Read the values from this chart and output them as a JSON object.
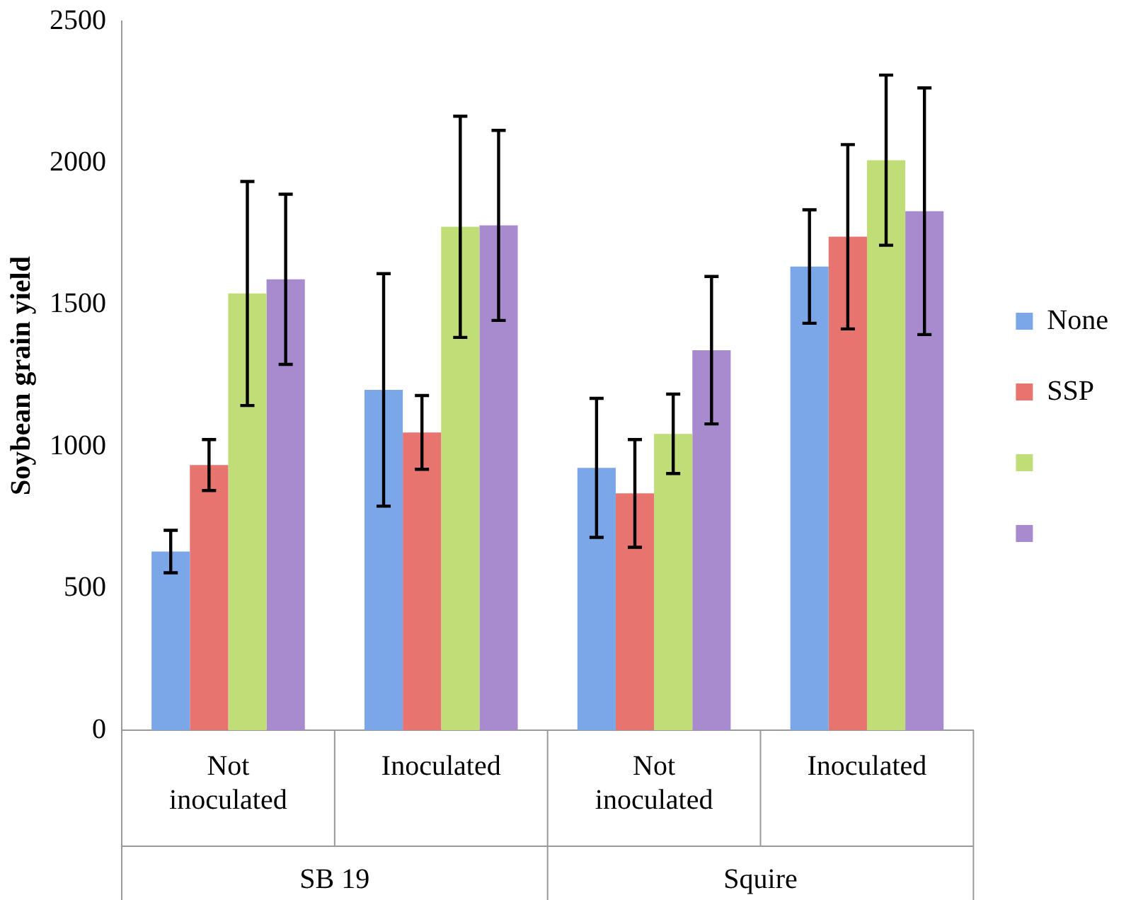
{
  "chart_data": {
    "type": "bar",
    "ylabel": "Soybean grain yield",
    "categories": [
      "Not inoculated",
      "Inoculated",
      "Not inoculated",
      "Inoculated"
    ],
    "series": [
      {
        "name": "None",
        "color": "#7ba7e8",
        "values": [
          630,
          1200,
          925,
          1635
        ],
        "errors": [
          75,
          410,
          245,
          200
        ]
      },
      {
        "name": "SSP",
        "color": "#e87470",
        "values": [
          935,
          1050,
          835,
          1740
        ],
        "errors": [
          90,
          130,
          190,
          325
        ]
      },
      {
        "name": null,
        "color": "#c0dd78",
        "values": [
          1540,
          1775,
          1045,
          2010
        ],
        "errors": [
          395,
          390,
          140,
          300
        ]
      },
      {
        "name": null,
        "color": "#a88bcf",
        "values": [
          1590,
          1780,
          1340,
          1830
        ],
        "errors": [
          300,
          335,
          260,
          435
        ]
      }
    ],
    "annotations": [
      "SB 19",
      "Squire"
    ],
    "ylim": [
      0,
      2500
    ],
    "yticks": [
      0,
      500,
      1000,
      1500,
      2000,
      2500
    ],
    "grid": false,
    "legend": "right"
  }
}
